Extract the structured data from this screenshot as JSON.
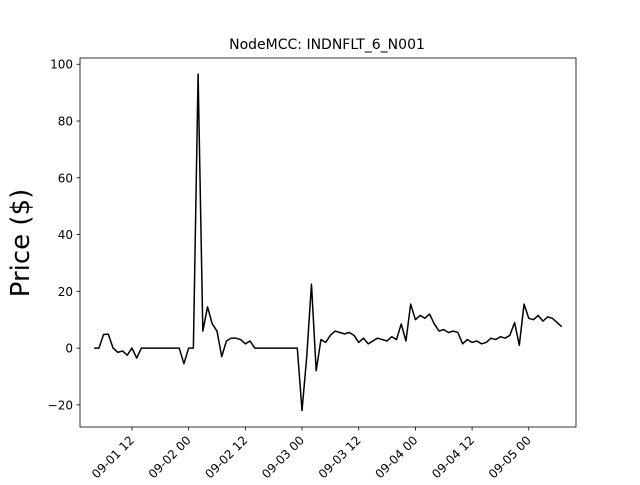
{
  "chart_data": {
    "type": "line",
    "title": "NodeMCC: INDNFLT_6_N001",
    "xlabel": "",
    "ylabel": "Price ($)",
    "xlim": [
      "2022-09-01 01:00",
      "2022-09-05 10:00"
    ],
    "ylim": [
      -27.8,
      102.2
    ],
    "y_ticks": [
      -20,
      0,
      20,
      40,
      60,
      80,
      100
    ],
    "x_ticks": [
      "2022-09-01 12:00",
      "2022-09-02 00:00",
      "2022-09-02 12:00",
      "2022-09-03 00:00",
      "2022-09-03 12:00",
      "2022-09-04 00:00",
      "2022-09-04 12:00",
      "2022-09-05 00:00"
    ],
    "x_tick_labels": [
      "09-01 12",
      "09-02 00",
      "09-02 12",
      "09-03 00",
      "09-03 12",
      "09-04 00",
      "09-04 12",
      "09-05 00"
    ],
    "grid": false,
    "series": [
      {
        "color": "#000000",
        "x": [
          "2022-09-01 04:00",
          "2022-09-01 05:00",
          "2022-09-01 06:00",
          "2022-09-01 07:00",
          "2022-09-01 08:00",
          "2022-09-01 09:00",
          "2022-09-01 10:00",
          "2022-09-01 11:00",
          "2022-09-01 12:00",
          "2022-09-01 13:00",
          "2022-09-01 14:00",
          "2022-09-01 15:00",
          "2022-09-01 16:00",
          "2022-09-01 17:00",
          "2022-09-01 18:00",
          "2022-09-01 19:00",
          "2022-09-01 20:00",
          "2022-09-01 21:00",
          "2022-09-01 22:00",
          "2022-09-01 23:00",
          "2022-09-02 00:00",
          "2022-09-02 01:00",
          "2022-09-02 02:00",
          "2022-09-02 03:00",
          "2022-09-02 04:00",
          "2022-09-02 05:00",
          "2022-09-02 06:00",
          "2022-09-02 07:00",
          "2022-09-02 08:00",
          "2022-09-02 09:00",
          "2022-09-02 10:00",
          "2022-09-02 11:00",
          "2022-09-02 12:00",
          "2022-09-02 13:00",
          "2022-09-02 14:00",
          "2022-09-02 15:00",
          "2022-09-02 16:00",
          "2022-09-02 17:00",
          "2022-09-02 18:00",
          "2022-09-02 19:00",
          "2022-09-02 20:00",
          "2022-09-02 21:00",
          "2022-09-02 22:00",
          "2022-09-02 23:00",
          "2022-09-03 00:00",
          "2022-09-03 01:00",
          "2022-09-03 02:00",
          "2022-09-03 03:00",
          "2022-09-03 04:00",
          "2022-09-03 05:00",
          "2022-09-03 06:00",
          "2022-09-03 07:00",
          "2022-09-03 08:00",
          "2022-09-03 09:00",
          "2022-09-03 10:00",
          "2022-09-03 11:00",
          "2022-09-03 12:00",
          "2022-09-03 13:00",
          "2022-09-03 14:00",
          "2022-09-03 15:00",
          "2022-09-03 16:00",
          "2022-09-03 17:00",
          "2022-09-03 18:00",
          "2022-09-03 19:00",
          "2022-09-03 20:00",
          "2022-09-03 21:00",
          "2022-09-03 22:00",
          "2022-09-03 23:00",
          "2022-09-04 00:00",
          "2022-09-04 01:00",
          "2022-09-04 02:00",
          "2022-09-04 03:00",
          "2022-09-04 04:00",
          "2022-09-04 05:00",
          "2022-09-04 06:00",
          "2022-09-04 07:00",
          "2022-09-04 08:00",
          "2022-09-04 09:00",
          "2022-09-04 10:00",
          "2022-09-04 11:00",
          "2022-09-04 12:00",
          "2022-09-04 13:00",
          "2022-09-04 14:00",
          "2022-09-04 15:00",
          "2022-09-04 16:00",
          "2022-09-04 17:00",
          "2022-09-04 18:00",
          "2022-09-04 19:00",
          "2022-09-04 20:00",
          "2022-09-04 21:00",
          "2022-09-04 22:00",
          "2022-09-04 23:00",
          "2022-09-05 00:00",
          "2022-09-05 01:00",
          "2022-09-05 02:00",
          "2022-09-05 03:00",
          "2022-09-05 04:00",
          "2022-09-05 05:00",
          "2022-09-05 06:00",
          "2022-09-05 07:00"
        ],
        "y": [
          0,
          0,
          4.8,
          4.9,
          0,
          -1.5,
          -1.0,
          -2.5,
          0,
          -3.5,
          0,
          0,
          0,
          0,
          0,
          0,
          0,
          0,
          0,
          -5.5,
          0,
          0,
          96.5,
          6.0,
          14.5,
          8.5,
          6.0,
          -3.0,
          2.5,
          3.5,
          3.5,
          3.0,
          1.5,
          2.5,
          0,
          0,
          0,
          0,
          0,
          0,
          0,
          0,
          0,
          0,
          -22.0,
          -3.0,
          22.5,
          -8.0,
          3.0,
          2.0,
          4.5,
          6.0,
          5.5,
          5.0,
          5.5,
          4.5,
          2.0,
          3.5,
          1.5,
          2.5,
          3.5,
          3.0,
          2.5,
          4.0,
          3.0,
          8.5,
          2.5,
          15.5,
          10.0,
          11.5,
          10.5,
          12.0,
          8.5,
          6.0,
          6.5,
          5.5,
          6.0,
          5.5,
          1.5,
          3.0,
          2.0,
          2.5,
          1.5,
          2.0,
          3.5,
          3.0,
          4.0,
          3.5,
          4.5,
          9.0,
          1.0,
          15.5,
          10.5,
          10.0,
          11.5,
          9.5,
          11.0,
          10.5,
          9.0,
          7.5
        ]
      }
    ]
  }
}
